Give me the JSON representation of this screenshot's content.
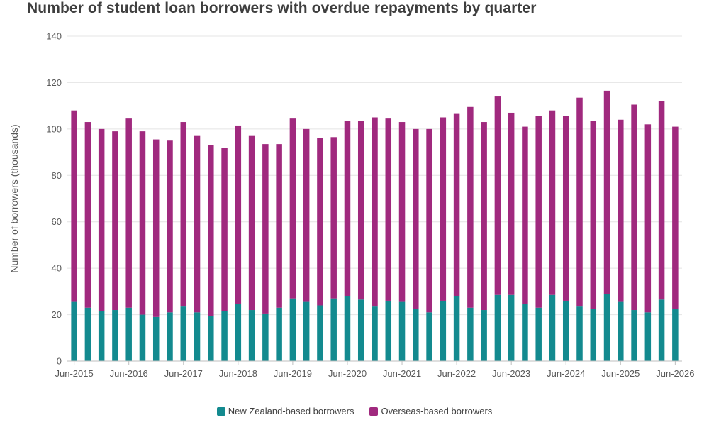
{
  "chart_data": {
    "type": "bar",
    "stacked": true,
    "title": "Number of student loan borrowers with overdue repayments by quarter",
    "ylabel": "Number of borrowers (thousands)",
    "xlabel": "",
    "ylim": [
      0,
      140
    ],
    "yticks": [
      0,
      20,
      40,
      60,
      80,
      100,
      120,
      140
    ],
    "grid": true,
    "legend_position": "bottom",
    "x_tick_labels": [
      "Jun-2015",
      "Jun-2016",
      "Jun-2017",
      "Jun-2018",
      "Jun-2019",
      "Jun-2020",
      "Jun-2021",
      "Jun-2022",
      "Jun-2023",
      "Jun-2024",
      "Jun-2025",
      "Jun-2026"
    ],
    "categories": [
      "Jun-2015",
      "Sep-2015",
      "Dec-2015",
      "Mar-2016",
      "Jun-2016",
      "Sep-2016",
      "Dec-2016",
      "Mar-2017",
      "Jun-2017",
      "Sep-2017",
      "Dec-2017",
      "Mar-2018",
      "Jun-2018",
      "Sep-2018",
      "Dec-2018",
      "Mar-2019",
      "Jun-2019",
      "Sep-2019",
      "Dec-2019",
      "Mar-2020",
      "Jun-2020",
      "Sep-2020",
      "Dec-2020",
      "Mar-2021",
      "Jun-2021",
      "Sep-2021",
      "Dec-2021",
      "Mar-2022",
      "Jun-2022",
      "Sep-2022",
      "Dec-2022",
      "Mar-2023",
      "Jun-2023",
      "Sep-2023",
      "Dec-2023",
      "Mar-2024",
      "Jun-2024",
      "Sep-2024",
      "Dec-2024",
      "Mar-2025",
      "Jun-2025",
      "Sep-2025",
      "Dec-2025",
      "Mar-2026",
      "Jun-2026"
    ],
    "series": [
      {
        "name": "New Zealand-based borrowers",
        "color": "#138a8f",
        "values": [
          25.5,
          23,
          21.5,
          22,
          23,
          20,
          19,
          21,
          23.5,
          21,
          19.5,
          21.5,
          24.5,
          22,
          20.5,
          23,
          27,
          25.5,
          24,
          27,
          28,
          26.5,
          23.5,
          26,
          25.5,
          22.5,
          21,
          26,
          28,
          23,
          22,
          28.5,
          28.5,
          24.5,
          23,
          28.5,
          26,
          23.5,
          22.5,
          29,
          25.5,
          22,
          21,
          26.5,
          22.5
        ]
      },
      {
        "name": "Overseas-based borrowers",
        "color": "#a0297e",
        "values": [
          82.5,
          80,
          78.5,
          77,
          81.5,
          79,
          76.5,
          74,
          79.5,
          76,
          73.5,
          70.5,
          77,
          75,
          73,
          70.5,
          77.5,
          74.5,
          72,
          69.5,
          75.5,
          77,
          81.5,
          78.5,
          77.5,
          77.5,
          79,
          79,
          78.5,
          86.5,
          81,
          85.5,
          78.5,
          76.5,
          82.5,
          79.5,
          79.5,
          90,
          81,
          87.5,
          78.5,
          88.5,
          81,
          85.5,
          78.5
        ]
      }
    ]
  }
}
